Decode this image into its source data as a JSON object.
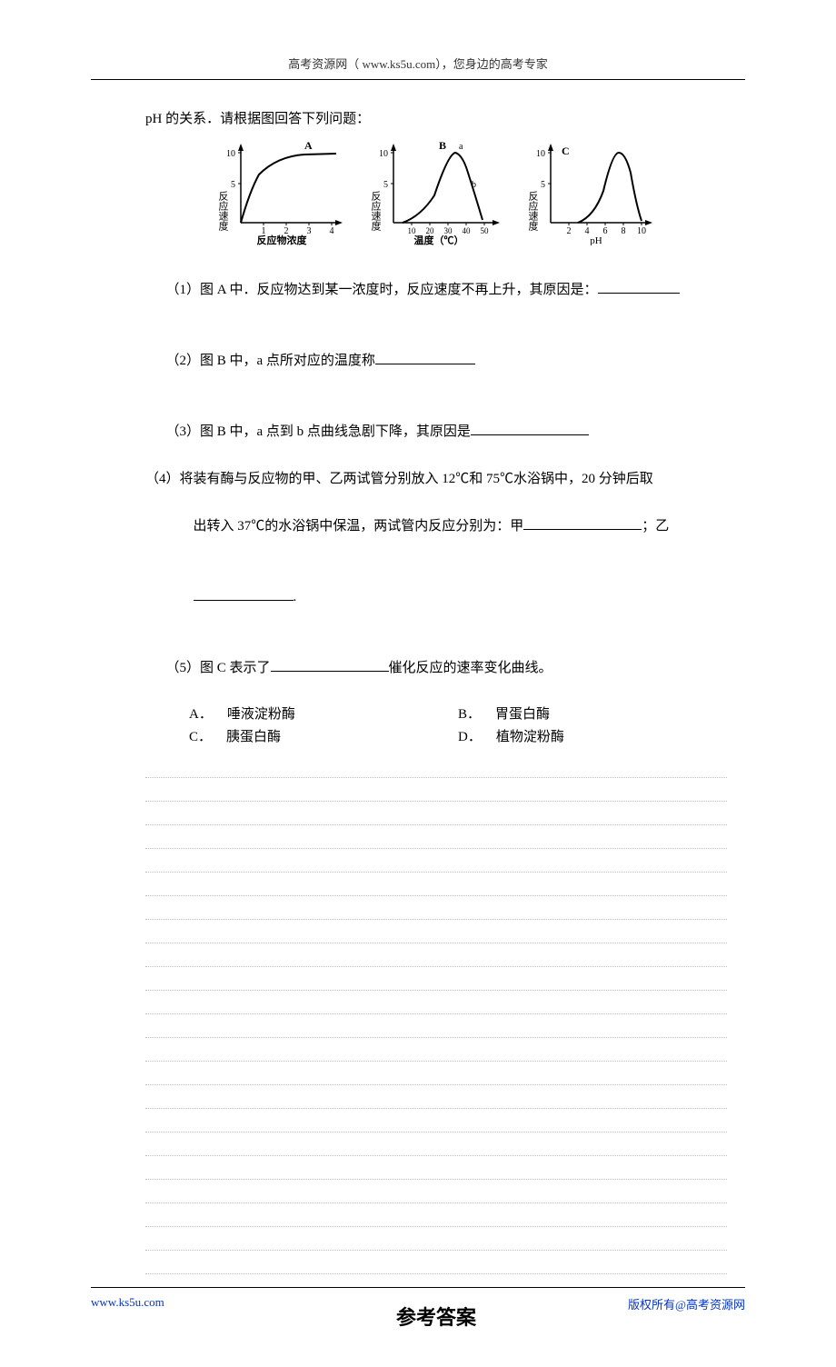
{
  "header": {
    "text": "高考资源网（ www.ks5u.com），您身边的高考专家"
  },
  "intro": "pH 的关系．请根据图回答下列问题：",
  "chartA": {
    "type": "line",
    "label": "A",
    "y_axis_label": "反应速度",
    "x_axis_label": "反应物浓度",
    "y_ticks": [
      5,
      10
    ],
    "x_ticks": [
      1,
      2,
      3,
      4
    ],
    "line_color": "#000000",
    "axis_color": "#000000",
    "font_size": 10,
    "points": [
      [
        0,
        0
      ],
      [
        0.3,
        3.5
      ],
      [
        0.6,
        6
      ],
      [
        1,
        8
      ],
      [
        1.5,
        9.2
      ],
      [
        2,
        9.6
      ],
      [
        3,
        9.8
      ],
      [
        4,
        9.8
      ]
    ]
  },
  "chartB": {
    "type": "line",
    "label": "B",
    "marker_a": "a",
    "marker_b": "b",
    "y_axis_label": "反应速度",
    "x_axis_label": "温度（℃）",
    "y_ticks": [
      5,
      10
    ],
    "x_ticks": [
      10,
      20,
      30,
      40,
      50
    ],
    "line_color": "#000000",
    "axis_color": "#000000",
    "font_size": 10,
    "points": [
      [
        5,
        0
      ],
      [
        12,
        1
      ],
      [
        20,
        3
      ],
      [
        28,
        7
      ],
      [
        33,
        10
      ],
      [
        38,
        9.5
      ],
      [
        43,
        5
      ],
      [
        48,
        0.5
      ]
    ]
  },
  "chartC": {
    "type": "line",
    "label": "C",
    "y_axis_label": "反应速度",
    "x_axis_label": "pH",
    "y_ticks": [
      5,
      10
    ],
    "x_ticks": [
      2,
      4,
      6,
      8,
      10
    ],
    "line_color": "#000000",
    "axis_color": "#000000",
    "font_size": 10,
    "points": [
      [
        3,
        0
      ],
      [
        5,
        1
      ],
      [
        6.5,
        5
      ],
      [
        7.5,
        10
      ],
      [
        8.5,
        10
      ],
      [
        9.2,
        3
      ],
      [
        10,
        0.2
      ]
    ]
  },
  "questions": {
    "q1": "（1）图 A 中．反应物达到某一浓度时，反应速度不再上升，其原因是：",
    "q2": "（2）图 B 中，a 点所对应的温度称",
    "q3": "（3）图 B 中，a 点到 b 点曲线急剧下降，其原因是",
    "q4_a": "（4）将装有酶与反应物的甲、乙两试管分别放入 12℃和 75℃水浴锅中，20 分钟后取",
    "q4_b": "出转入 37℃的水浴锅中保温，两试管内反应分别为：甲",
    "q4_c": "；乙",
    "q4_d": ".",
    "q5": "（5）图 C 表示了",
    "q5_tail": "催化反应的速率变化曲线。"
  },
  "options": {
    "A": {
      "letter": "A．",
      "text": "唾液淀粉酶"
    },
    "B": {
      "letter": "B．",
      "text": "胃蛋白酶"
    },
    "C": {
      "letter": "C．",
      "text": "胰蛋白酶"
    },
    "D": {
      "letter": "D．",
      "text": "植物淀粉酶"
    }
  },
  "answer_title": "参考答案",
  "footer": {
    "left": "www.ks5u.com",
    "right": "版权所有@高考资源网"
  },
  "ruled_lines_count": 22
}
